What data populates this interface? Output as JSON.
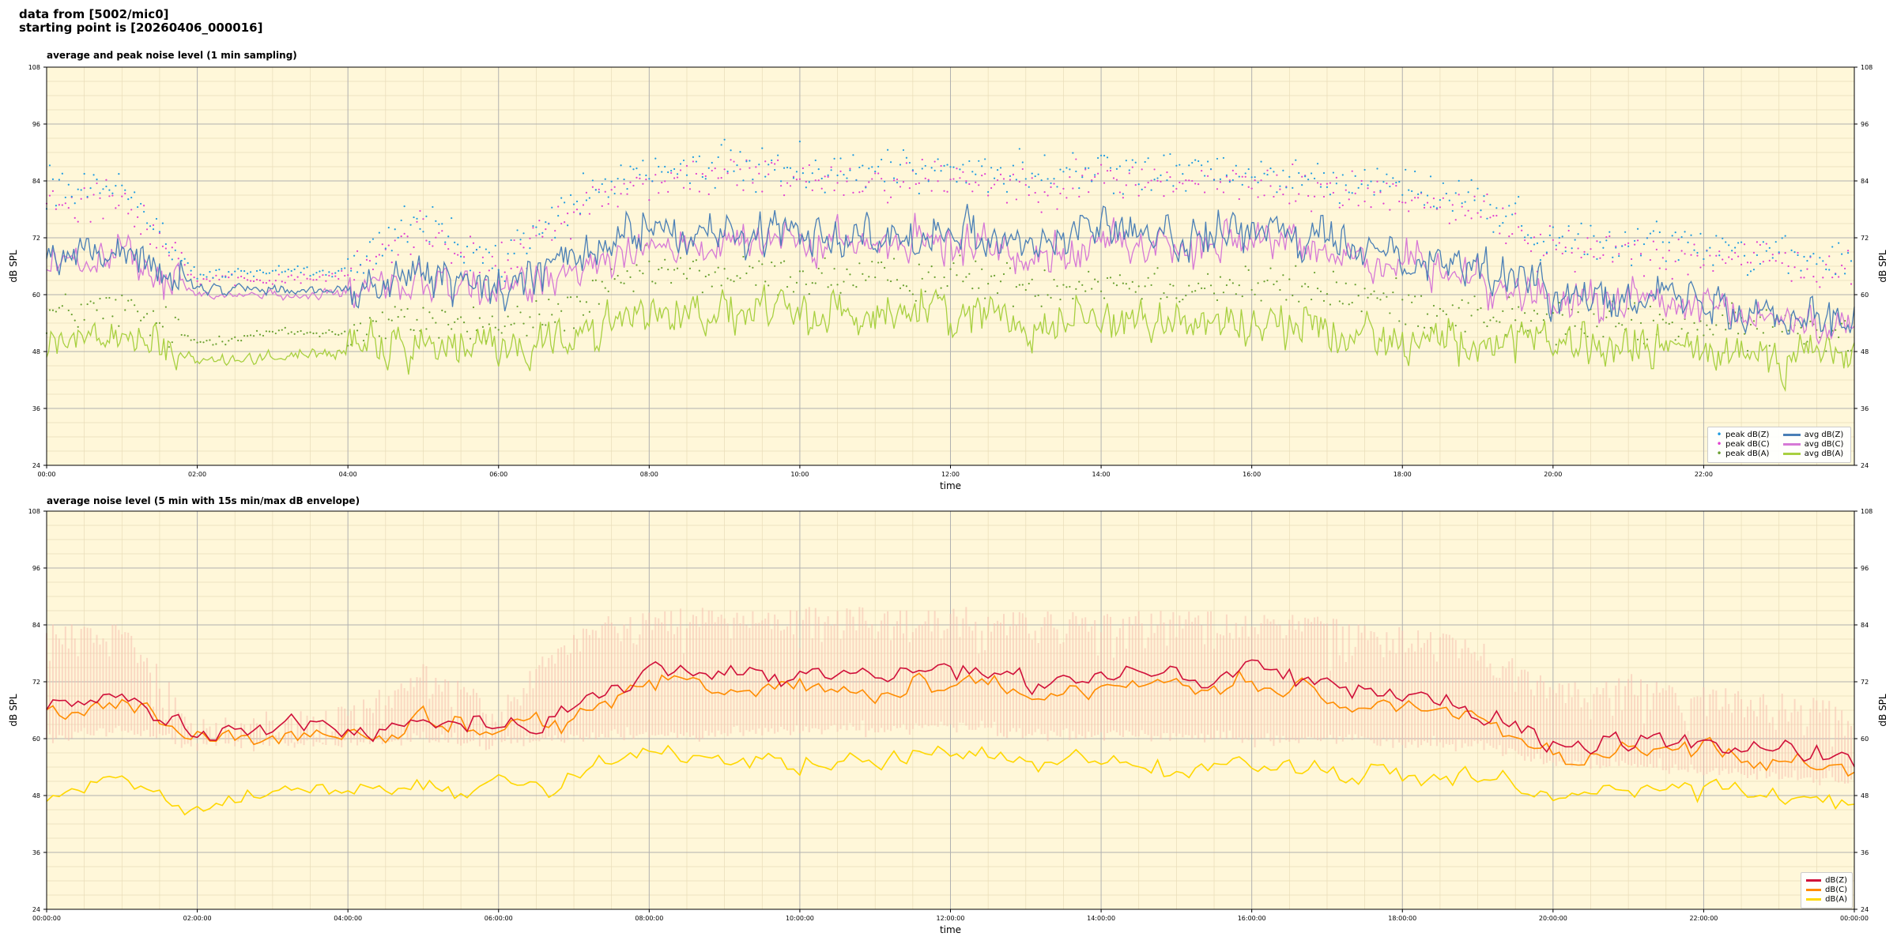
{
  "header": {
    "line1": "data from [5002/mic0]",
    "line2": "starting point is [20260406_000016]"
  },
  "colors": {
    "plot_bg": "#fff7d9",
    "grid_major": "#b0b0b0",
    "grid_minor": "#e8dcb8",
    "peak_z": "#1f9be0",
    "peak_c": "#e040d0",
    "peak_a": "#6aa030",
    "avg_z": "#4a7fb6",
    "avg_c": "#d679d6",
    "avg_a": "#a8d040",
    "db_z": "#d0103a",
    "db_c": "#ff8c00",
    "db_a": "#ffd700",
    "envelope": "#f7c0b0"
  },
  "chart_data": [
    {
      "type": "line",
      "title": "average and peak noise level (1 min sampling)",
      "xlabel": "time",
      "ylabel": "dB SPL",
      "ylim": [
        24,
        108
      ],
      "yticks": [
        "24",
        "36",
        "48",
        "60",
        "72",
        "84",
        "96",
        "108"
      ],
      "xticks": [
        "00:00",
        "02:00",
        "04:00",
        "06:00",
        "08:00",
        "10:00",
        "12:00",
        "14:00",
        "16:00",
        "18:00",
        "20:00",
        "22:00"
      ],
      "grid": true,
      "legend_position": "lower-right",
      "x": [
        "00:00",
        "01:00",
        "02:00",
        "03:00",
        "04:00",
        "05:00",
        "06:00",
        "07:00",
        "08:00",
        "09:00",
        "10:00",
        "11:00",
        "12:00",
        "13:00",
        "14:00",
        "15:00",
        "16:00",
        "17:00",
        "18:00",
        "19:00",
        "20:00",
        "21:00",
        "22:00",
        "23:00",
        "24:00"
      ],
      "legend": {
        "peak_z": "peak dB(Z)",
        "peak_c": "peak dB(C)",
        "peak_a": "peak dB(A)",
        "avg_z": "avg dB(Z)",
        "avg_c": "avg dB(C)",
        "avg_a": "avg dB(A)"
      },
      "series": [
        {
          "name": "avg dB(Z)",
          "values": [
            68,
            70,
            61,
            61,
            61,
            64,
            61,
            68,
            74,
            72,
            74,
            72,
            74,
            71,
            74,
            72,
            73,
            71,
            69,
            66,
            60,
            61,
            58,
            57,
            55
          ]
        },
        {
          "name": "avg dB(C)",
          "values": [
            66,
            68,
            60,
            60,
            60,
            62,
            60,
            66,
            71,
            70,
            71,
            70,
            71,
            69,
            71,
            70,
            71,
            69,
            67,
            64,
            58,
            59,
            56,
            55,
            53
          ]
        },
        {
          "name": "avg dB(A)",
          "values": [
            50,
            51,
            46,
            47,
            48,
            49,
            49,
            51,
            57,
            56,
            56,
            56,
            57,
            54,
            56,
            54,
            54,
            53,
            51,
            50,
            49,
            49,
            48,
            48,
            47
          ]
        },
        {
          "name": "peak dB(Z)",
          "values": [
            82,
            83,
            64,
            65,
            65,
            76,
            66,
            80,
            86,
            87,
            87,
            86,
            87,
            85,
            86,
            86,
            85,
            84,
            83,
            80,
            71,
            72,
            70,
            69,
            66
          ]
        },
        {
          "name": "peak dB(C)",
          "values": [
            80,
            81,
            63,
            63,
            64,
            74,
            65,
            78,
            84,
            85,
            85,
            84,
            85,
            83,
            84,
            84,
            83,
            82,
            81,
            78,
            69,
            70,
            68,
            67,
            64
          ]
        },
        {
          "name": "peak dB(A)",
          "values": [
            56,
            57,
            50,
            52,
            52,
            55,
            53,
            57,
            65,
            64,
            64,
            63,
            64,
            62,
            63,
            62,
            62,
            61,
            58,
            56,
            54,
            54,
            53,
            53,
            52
          ]
        }
      ]
    },
    {
      "type": "line",
      "title": "average noise level (5 min with 15s min/max dB envelope)",
      "xlabel": "time",
      "ylabel": "dB SPL",
      "ylim": [
        24,
        108
      ],
      "yticks": [
        "24",
        "36",
        "48",
        "60",
        "72",
        "84",
        "96",
        "108"
      ],
      "xticks": [
        "00:00:00",
        "02:00:00",
        "04:00:00",
        "06:00:00",
        "08:00:00",
        "10:00:00",
        "12:00:00",
        "14:00:00",
        "16:00:00",
        "18:00:00",
        "20:00:00",
        "22:00:00",
        "00:00:00"
      ],
      "grid": true,
      "legend_position": "lower-right",
      "x": [
        "00:00",
        "01:00",
        "02:00",
        "03:00",
        "04:00",
        "05:00",
        "06:00",
        "07:00",
        "08:00",
        "09:00",
        "10:00",
        "11:00",
        "12:00",
        "13:00",
        "14:00",
        "15:00",
        "16:00",
        "17:00",
        "18:00",
        "19:00",
        "20:00",
        "21:00",
        "22:00",
        "23:00",
        "24:00"
      ],
      "legend": {
        "db_z": "dB(Z)",
        "db_c": "dB(C)",
        "db_a": "dB(A)"
      },
      "series": [
        {
          "name": "dB(Z)",
          "values": [
            66,
            70,
            61,
            61,
            62,
            64,
            62,
            66,
            74,
            73,
            74,
            73,
            76,
            72,
            74,
            73,
            74,
            72,
            69,
            66,
            58,
            60,
            59,
            57,
            55
          ]
        },
        {
          "name": "dB(C)",
          "values": [
            64,
            68,
            60,
            60,
            61,
            63,
            61,
            64,
            72,
            71,
            71,
            71,
            73,
            70,
            71,
            71,
            72,
            70,
            67,
            64,
            56,
            58,
            57,
            55,
            53
          ]
        },
        {
          "name": "dB(A)",
          "values": [
            48,
            52,
            45,
            48,
            49,
            50,
            50,
            51,
            57,
            55,
            56,
            55,
            58,
            55,
            56,
            54,
            55,
            54,
            52,
            51,
            49,
            49,
            48,
            48,
            47
          ]
        }
      ],
      "envelope": {
        "min": [
          60,
          62,
          59,
          59,
          59,
          60,
          59,
          60,
          61,
          61,
          62,
          62,
          63,
          61,
          61,
          61,
          60,
          60,
          59,
          59,
          55,
          55,
          53,
          52,
          51
        ],
        "max": [
          84,
          86,
          64,
          66,
          67,
          76,
          68,
          84,
          88,
          88,
          88,
          88,
          88,
          87,
          87,
          87,
          87,
          86,
          84,
          82,
          72,
          74,
          71,
          70,
          67
        ]
      }
    }
  ]
}
